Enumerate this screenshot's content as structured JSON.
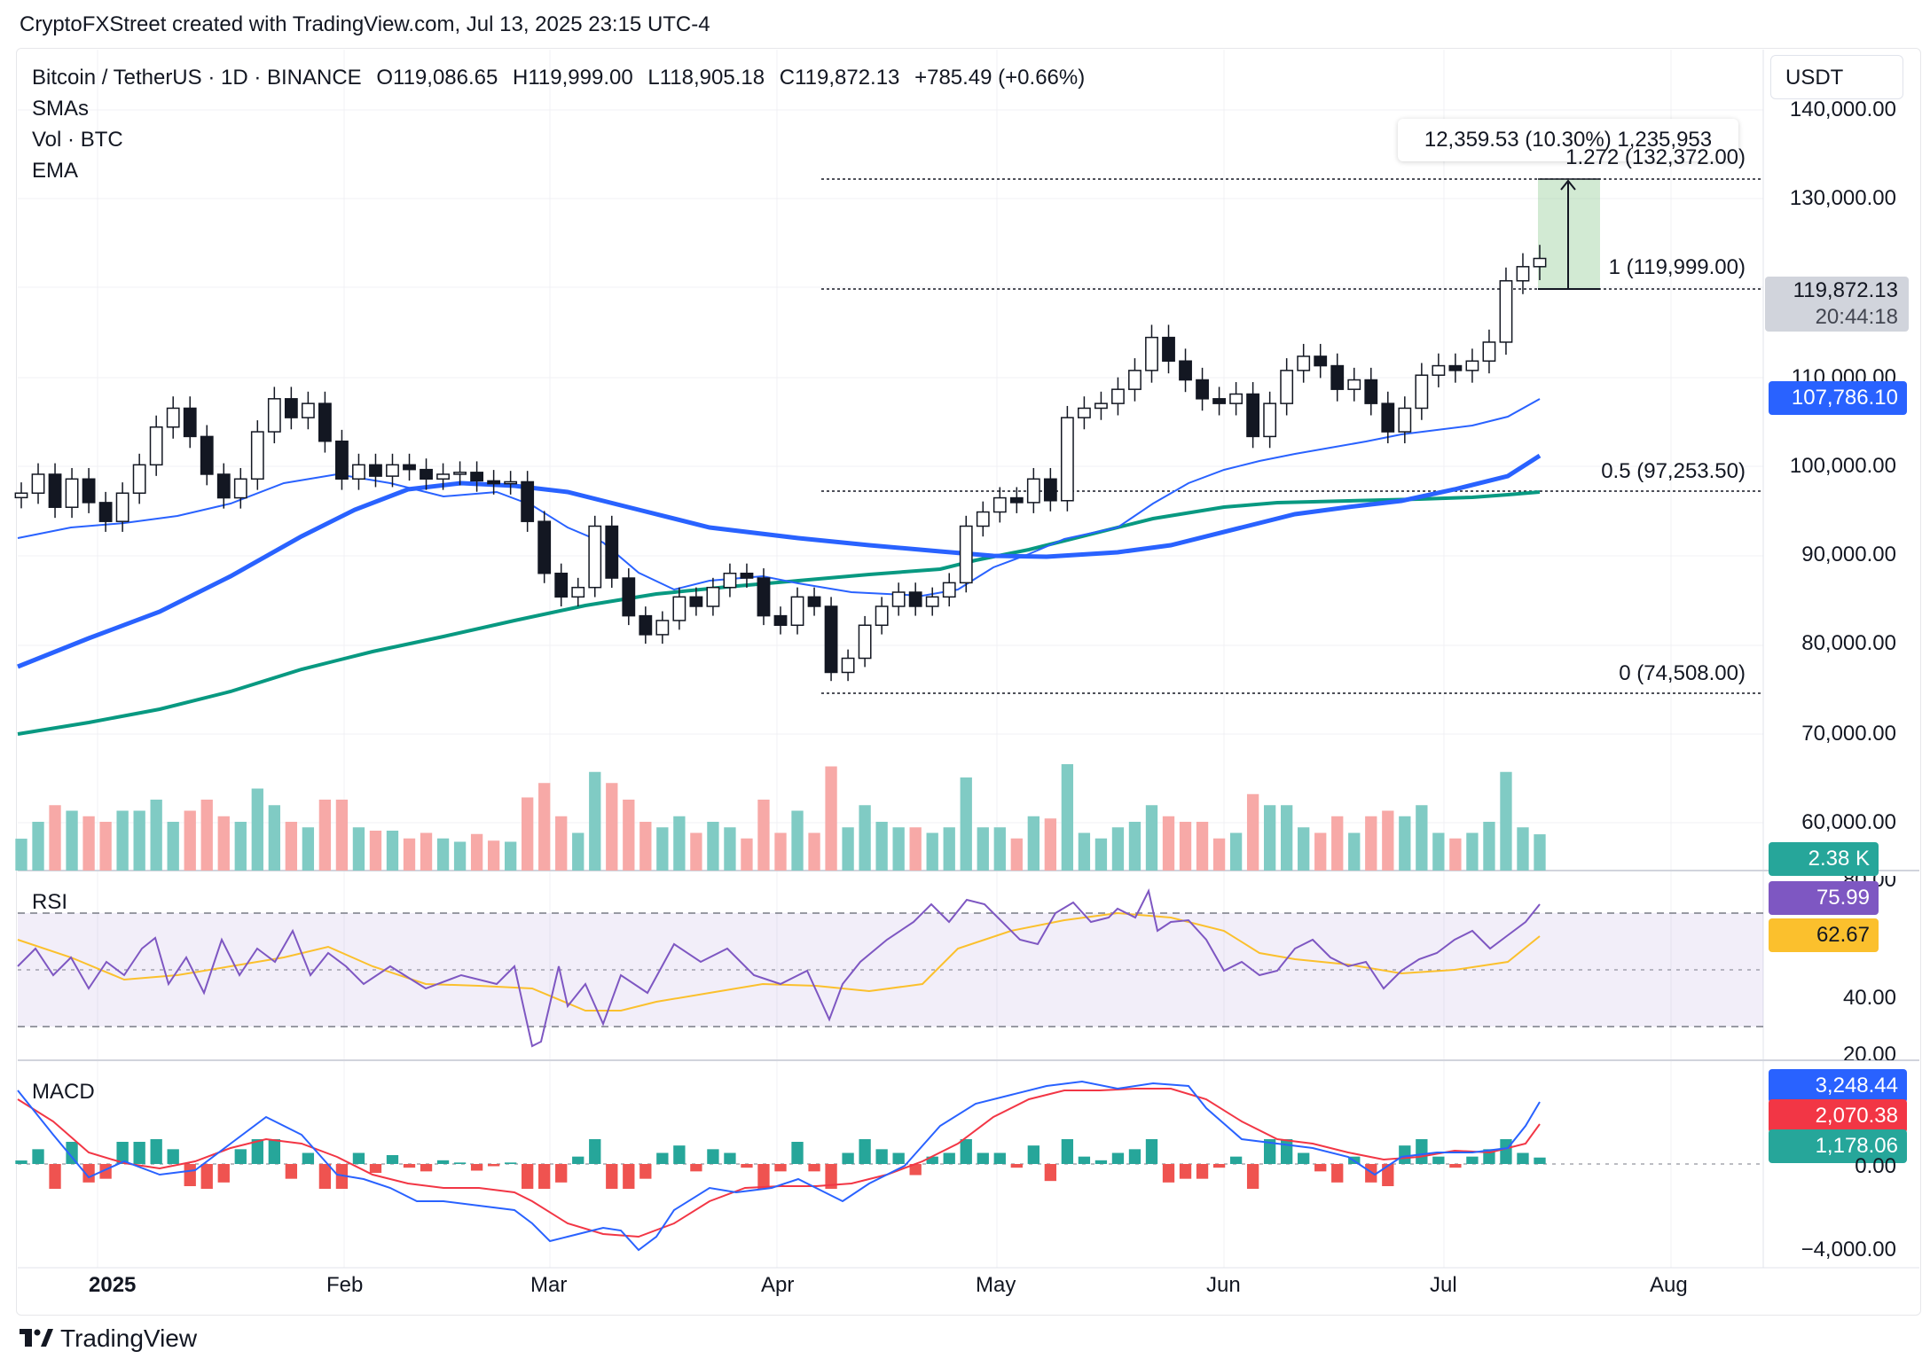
{
  "caption": "CryptoFXStreet created with TradingView.com, Jul 13, 2025 23:15 UTC-4",
  "legend": {
    "symbol": "Bitcoin / TetherUS · 1D · BINANCE",
    "open": "O119,086.65",
    "high": "H119,999.00",
    "low": "L118,905.18",
    "close": "C119,872.13",
    "change": "+785.49 (+0.66%)",
    "studies": [
      "SMAs",
      "Vol · BTC",
      "EMA"
    ]
  },
  "currency": "USDT",
  "price_axis": [
    "140,000.00",
    "130,000.00",
    "110,000.00",
    "100,000.00",
    "90,000.00",
    "80,000.00",
    "70,000.00",
    "60,000.00"
  ],
  "rsi_axis": [
    "40.00",
    "20.00"
  ],
  "macd_axis": [
    "0.00",
    "−4,000.00"
  ],
  "time_axis": [
    "2025",
    "Feb",
    "Mar",
    "Apr",
    "May",
    "Jun",
    "Jul",
    "Aug"
  ],
  "fib": {
    "level_1272": "1.272 (132,372.00)",
    "level_1": "1 (119,999.00)",
    "level_05": "0.5 (97,253.50)",
    "level_0": "0 (74,508.00)"
  },
  "measure": "12,359.53 (10.30%) 1,235,953",
  "last_price": "119,872.13",
  "countdown": "20:44:18",
  "tags": {
    "sma": "107,786.10",
    "volume": "2.38 K",
    "rsi": "75.99",
    "rsi_ma": "62.67",
    "rsi_top_partial": "80.00",
    "macd": "3,248.44",
    "signal": "2,070.38",
    "hist": "1,178.06"
  },
  "panes": {
    "rsi": "RSI",
    "macd": "MACD"
  },
  "brand": "TradingView",
  "colors": {
    "up": "#26a69a",
    "down": "#ef5350",
    "candle": "#131722",
    "sma50": "#2962ff",
    "sma200": "#2962ff",
    "ema": "#089981",
    "rsi": "#7e57c2",
    "rsi_ma": "#fbc02d",
    "macd": "#2962ff",
    "signal": "#f23645"
  },
  "chart_data": {
    "type": "candlestick",
    "series": [
      {
        "name": "Bitcoin / TetherUS",
        "close": [
          95000,
          97000,
          93500,
          96500,
          94000,
          92000,
          95000,
          98000,
          102000,
          104000,
          101000,
          97000,
          94500,
          96500,
          101500,
          105000,
          103000,
          104500,
          100500,
          96500,
          98000,
          96800,
          98000,
          97500,
          96500,
          97000,
          97200,
          96300,
          96000,
          96200,
          92000,
          86500,
          84000,
          85000,
          91500,
          86000,
          82000,
          80000,
          81500,
          84000,
          83000,
          85000,
          86500,
          86000,
          82000,
          81000,
          84000,
          83000,
          76000,
          77500,
          81000,
          83000,
          84500,
          83000,
          84000,
          85500,
          91500,
          93000,
          94500,
          94000,
          96500,
          94200,
          103000,
          104000,
          104500,
          106000,
          108000,
          111500,
          109000,
          107000,
          105000,
          104500,
          105500,
          101000,
          104500,
          108000,
          109500,
          108500,
          106000,
          107000,
          104500,
          101500,
          104000,
          107500,
          108500,
          108000,
          109000,
          111000,
          117500,
          119000,
          119872
        ]
      },
      {
        "name": "SMA 50 (blue thin)"
      },
      {
        "name": "SMA 100 (blue thick)"
      },
      {
        "name": "EMA 200 (green)"
      }
    ],
    "ylim": [
      55000,
      142000
    ],
    "fib_levels": {
      "0": 74508,
      "0.5": 97253.5,
      "1": 119999,
      "1.272": 132372
    },
    "last_close": 119872.13,
    "sma_last": 107786.1,
    "volume_last": "2.38 K",
    "rsi": {
      "ylim": [
        20,
        80
      ],
      "upper": 70,
      "mid": 50,
      "lower": 30,
      "last": 75.99,
      "ma_last": 62.67
    },
    "macd": {
      "zero": 0,
      "macd_last": 3248.44,
      "signal_last": 2070.38,
      "hist_last": 1178.06
    }
  }
}
